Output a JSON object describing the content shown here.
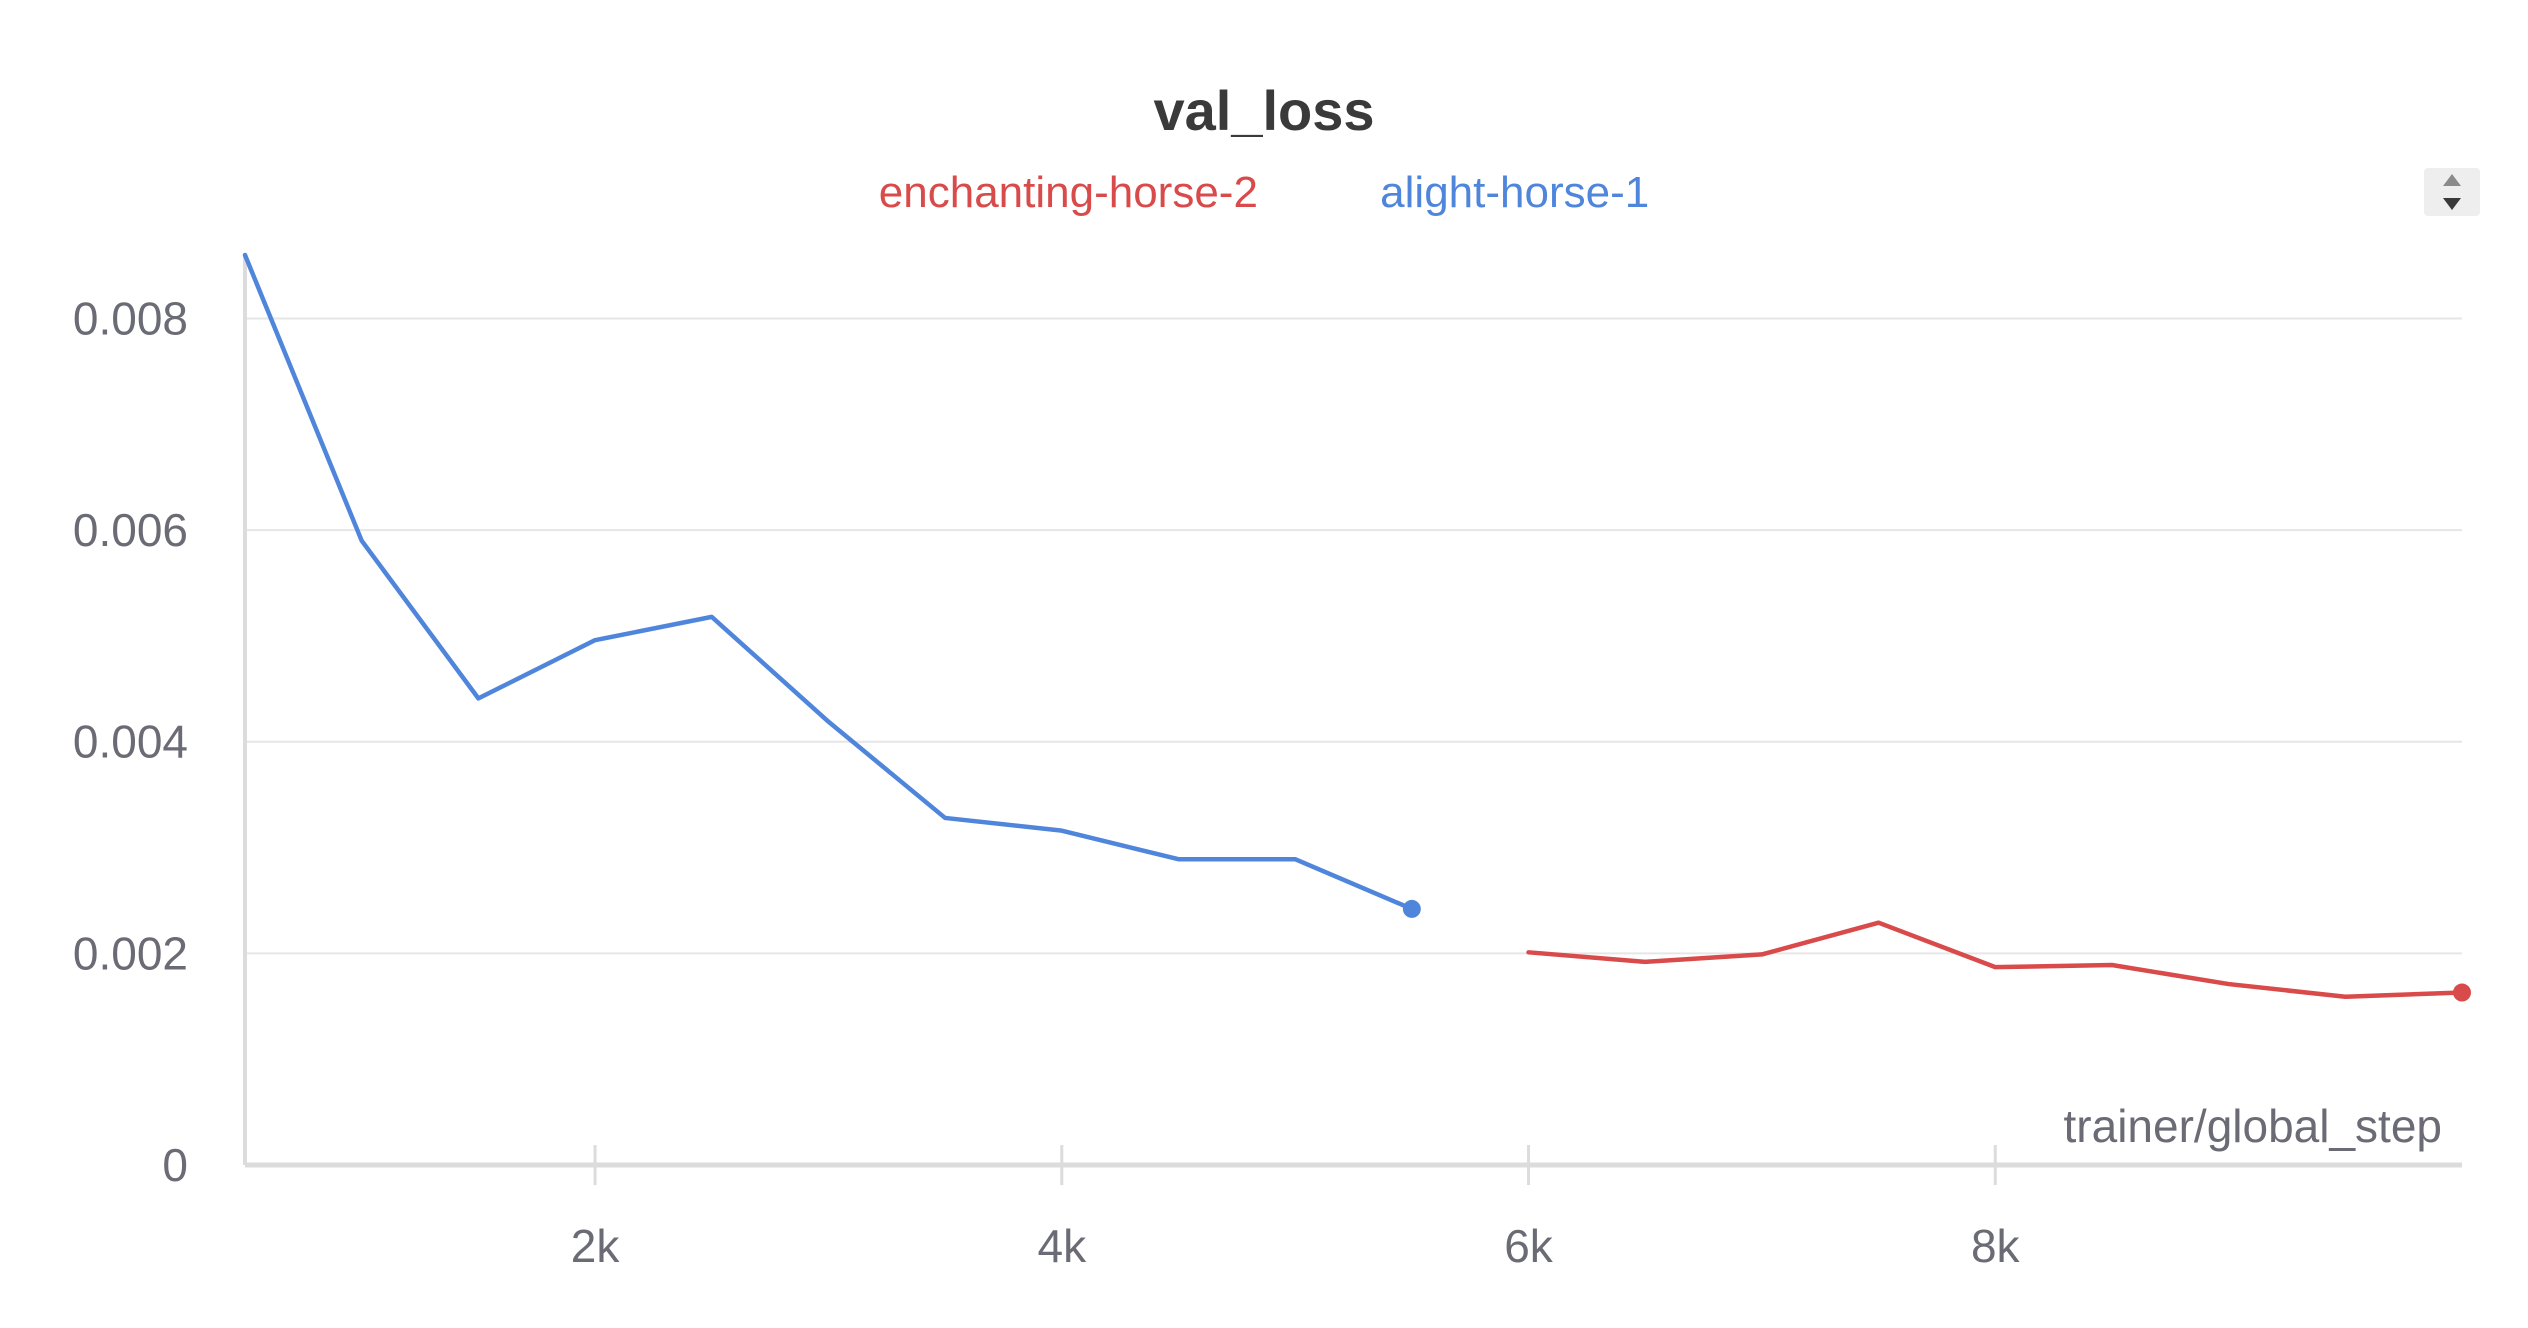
{
  "chart_data": {
    "type": "line",
    "title": "val_loss",
    "xlabel": "trainer/global_step",
    "ylabel": "",
    "xlim": [
      500,
      10000
    ],
    "ylim": [
      0,
      0.0086
    ],
    "x_ticks": [
      2000,
      4000,
      6000,
      8000
    ],
    "x_tick_labels": [
      "2k",
      "4k",
      "6k",
      "8k"
    ],
    "y_ticks": [
      0,
      0.002,
      0.004,
      0.006,
      0.008
    ],
    "y_tick_labels": [
      "0",
      "0.002",
      "0.004",
      "0.006",
      "0.008"
    ],
    "grid": true,
    "legend_position": "top-center",
    "series": [
      {
        "name": "enchanting-horse-2",
        "color": "#d94a4a",
        "x": [
          6000,
          6500,
          7000,
          7500,
          8000,
          8500,
          9000,
          9500,
          10000
        ],
        "y": [
          0.00201,
          0.00192,
          0.00199,
          0.00229,
          0.00187,
          0.00189,
          0.00171,
          0.00159,
          0.00163
        ]
      },
      {
        "name": "alight-horse-1",
        "color": "#4f86db",
        "x": [
          500,
          1000,
          1500,
          2000,
          2500,
          3000,
          3500,
          4000,
          4500,
          5000,
          5500
        ],
        "y": [
          0.0086,
          0.0059,
          0.00441,
          0.00496,
          0.00518,
          0.00419,
          0.00328,
          0.00316,
          0.00289,
          0.00289,
          0.00242
        ]
      }
    ]
  },
  "legend": {
    "items": [
      {
        "label": "enchanting-horse-2",
        "color": "#d94a4a"
      },
      {
        "label": "alight-horse-1",
        "color": "#4f86db"
      }
    ]
  },
  "controls": {
    "scroll_icon": "up-down-arrows-icon"
  }
}
